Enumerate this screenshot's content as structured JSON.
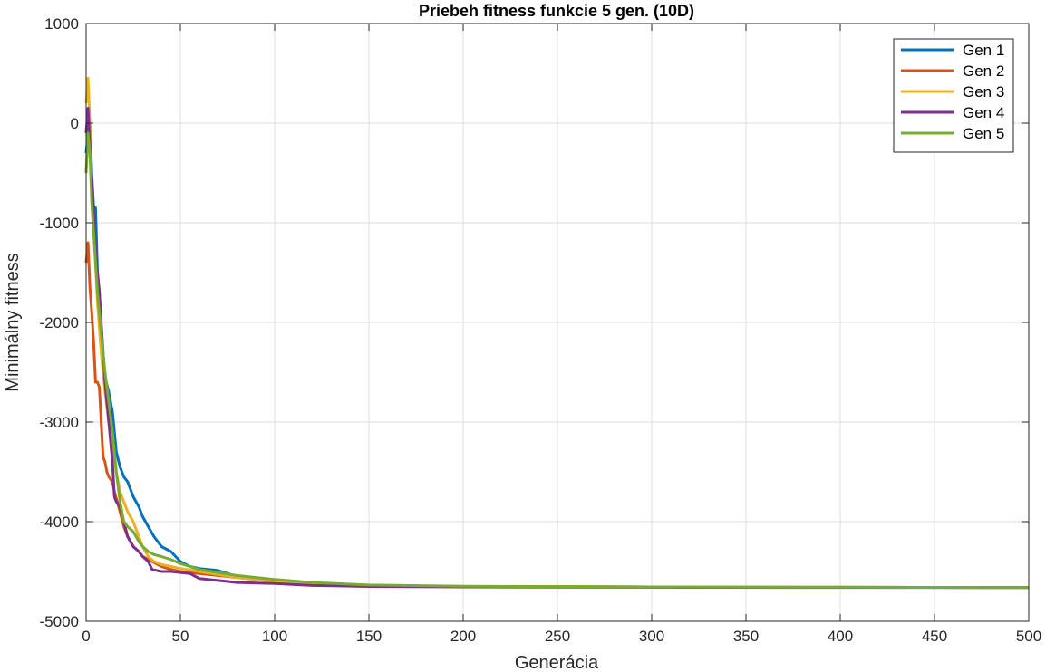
{
  "chart_data": {
    "type": "line",
    "title": "Priebeh fitness funkcie 5 gen. (10D)",
    "xlabel": "Generácia",
    "ylabel": "Minimálny fitness",
    "xlim": [
      0,
      500
    ],
    "ylim": [
      -5000,
      1000
    ],
    "xticks": [
      0,
      50,
      100,
      150,
      200,
      250,
      300,
      350,
      400,
      450,
      500
    ],
    "yticks": [
      1000,
      0,
      -1000,
      -2000,
      -3000,
      -4000,
      -5000
    ],
    "grid": true,
    "legend_position": "top-right",
    "series": [
      {
        "name": "Gen 1",
        "color": "#0072BD",
        "x": [
          0,
          1,
          2,
          3,
          4,
          5,
          6,
          7,
          8,
          9,
          10,
          12,
          14,
          16,
          18,
          20,
          22,
          25,
          28,
          30,
          33,
          36,
          40,
          45,
          50,
          55,
          60,
          70,
          80,
          100,
          120,
          150,
          200,
          300,
          400,
          500
        ],
        "y": [
          -300,
          -100,
          0,
          -500,
          -850,
          -850,
          -1500,
          -1700,
          -2050,
          -2300,
          -2550,
          -2700,
          -2900,
          -3300,
          -3450,
          -3550,
          -3600,
          -3750,
          -3850,
          -3950,
          -4050,
          -4150,
          -4250,
          -4300,
          -4400,
          -4450,
          -4470,
          -4490,
          -4550,
          -4600,
          -4620,
          -4640,
          -4650,
          -4655,
          -4658,
          -4660
        ]
      },
      {
        "name": "Gen 2",
        "color": "#D95319",
        "x": [
          0,
          1,
          2,
          3,
          4,
          5,
          6,
          7,
          8,
          9,
          10,
          11,
          12,
          14,
          15,
          18,
          20,
          22,
          25,
          28,
          30,
          35,
          40,
          45,
          50,
          60,
          70,
          80,
          100,
          120,
          150,
          200,
          300,
          400,
          500
        ],
        "y": [
          -1400,
          -1200,
          -1650,
          -1900,
          -2200,
          -2600,
          -2600,
          -2650,
          -3000,
          -3350,
          -3400,
          -3500,
          -3550,
          -3600,
          -3700,
          -3900,
          -4050,
          -4150,
          -4250,
          -4300,
          -4350,
          -4400,
          -4450,
          -4480,
          -4500,
          -4520,
          -4540,
          -4560,
          -4600,
          -4620,
          -4640,
          -4650,
          -4655,
          -4658,
          -4660
        ]
      },
      {
        "name": "Gen 3",
        "color": "#EDB120",
        "x": [
          0,
          1,
          2,
          3,
          4,
          5,
          6,
          8,
          10,
          12,
          14,
          16,
          18,
          20,
          22,
          25,
          28,
          30,
          33,
          36,
          40,
          45,
          50,
          60,
          70,
          80,
          100,
          120,
          150,
          200,
          300,
          400,
          500
        ],
        "y": [
          200,
          450,
          0,
          -700,
          -1000,
          -1400,
          -1800,
          -2300,
          -2700,
          -3000,
          -3200,
          -3500,
          -3700,
          -3800,
          -3900,
          -4000,
          -4150,
          -4250,
          -4350,
          -4400,
          -4430,
          -4450,
          -4470,
          -4500,
          -4530,
          -4560,
          -4600,
          -4620,
          -4640,
          -4650,
          -4655,
          -4658,
          -4660
        ]
      },
      {
        "name": "Gen 4",
        "color": "#7E2F8E",
        "x": [
          0,
          1,
          2,
          3,
          4,
          5,
          6,
          7,
          8,
          9,
          10,
          12,
          14,
          15,
          16,
          18,
          20,
          22,
          25,
          28,
          30,
          33,
          35,
          40,
          45,
          50,
          55,
          60,
          70,
          80,
          100,
          120,
          150,
          200,
          300,
          400,
          500
        ],
        "y": [
          -100,
          150,
          -200,
          -600,
          -900,
          -1300,
          -1500,
          -1700,
          -2000,
          -2300,
          -2600,
          -3000,
          -3400,
          -3750,
          -3800,
          -3850,
          -4000,
          -4150,
          -4250,
          -4300,
          -4350,
          -4400,
          -4480,
          -4500,
          -4500,
          -4510,
          -4520,
          -4570,
          -4590,
          -4610,
          -4620,
          -4640,
          -4650,
          -4655,
          -4658,
          -4660,
          -4660
        ]
      },
      {
        "name": "Gen 5",
        "color": "#77AC30",
        "x": [
          0,
          1,
          2,
          3,
          4,
          5,
          6,
          8,
          10,
          12,
          14,
          16,
          18,
          20,
          22,
          25,
          28,
          30,
          33,
          36,
          40,
          45,
          50,
          60,
          70,
          80,
          100,
          120,
          150,
          200,
          300,
          400,
          500
        ],
        "y": [
          -500,
          -100,
          -300,
          -800,
          -1100,
          -1400,
          -1700,
          -2100,
          -2500,
          -2800,
          -3100,
          -3500,
          -3800,
          -4000,
          -4050,
          -4100,
          -4200,
          -4250,
          -4300,
          -4330,
          -4350,
          -4380,
          -4420,
          -4480,
          -4510,
          -4540,
          -4580,
          -4610,
          -4635,
          -4648,
          -4655,
          -4658,
          -4660
        ]
      }
    ]
  }
}
